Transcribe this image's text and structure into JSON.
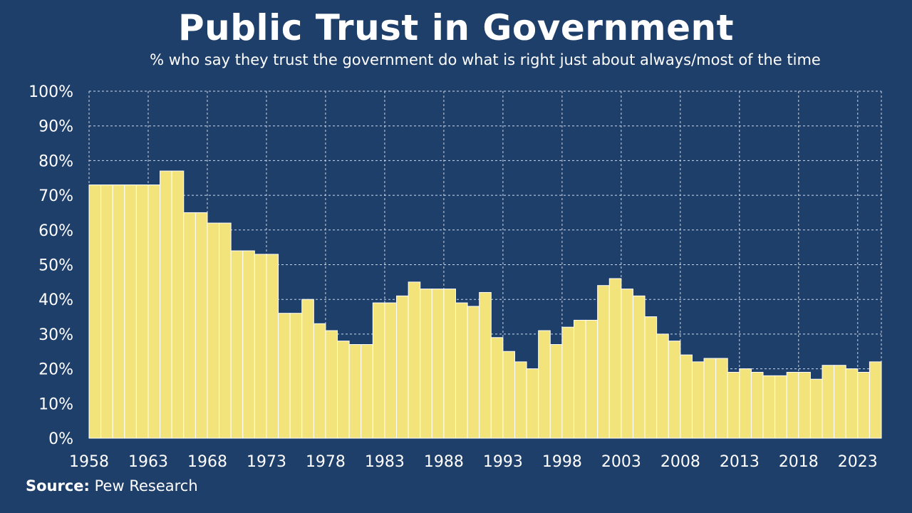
{
  "header": {
    "title": "Public Trust in Government",
    "subtitle": "% who say they trust the government do what is right just about always/most of the time"
  },
  "footer": {
    "source_label": "Source:",
    "source_value": "Pew Research"
  },
  "colors": {
    "background": "#1f3f6b",
    "bar": "#f2e37a",
    "bar_stroke": "#ffffff",
    "grid": "#d0d6e0"
  },
  "chart_data": {
    "type": "bar",
    "title": "Public Trust in Government",
    "subtitle": "% who say they trust the government do what is right just about always/most of the time",
    "xlabel": "",
    "ylabel": "",
    "ylim": [
      0,
      100
    ],
    "y_ticks": [
      0,
      10,
      20,
      30,
      40,
      50,
      60,
      70,
      80,
      90,
      100
    ],
    "y_tick_labels": [
      "0%",
      "10%",
      "20%",
      "30%",
      "40%",
      "50%",
      "60%",
      "70%",
      "80%",
      "90%",
      "100%"
    ],
    "x_ticks": [
      1958,
      1963,
      1968,
      1973,
      1978,
      1983,
      1988,
      1993,
      1998,
      2003,
      2008,
      2013,
      2018,
      2023
    ],
    "grid": true,
    "legend": "none",
    "x": [
      1958,
      1959,
      1960,
      1961,
      1962,
      1963,
      1964,
      1965,
      1966,
      1967,
      1968,
      1969,
      1970,
      1971,
      1972,
      1973,
      1974,
      1975,
      1976,
      1977,
      1978,
      1979,
      1980,
      1981,
      1982,
      1983,
      1984,
      1985,
      1986,
      1987,
      1988,
      1989,
      1990,
      1991,
      1992,
      1993,
      1994,
      1995,
      1996,
      1997,
      1998,
      1999,
      2000,
      2001,
      2002,
      2003,
      2004,
      2005,
      2006,
      2007,
      2008,
      2009,
      2010,
      2011,
      2012,
      2013,
      2014,
      2015,
      2016,
      2017,
      2018,
      2019,
      2020,
      2021,
      2022,
      2023,
      2024
    ],
    "values": [
      73,
      73,
      73,
      73,
      73,
      73,
      77,
      77,
      65,
      65,
      62,
      62,
      54,
      54,
      53,
      53,
      36,
      36,
      40,
      33,
      31,
      28,
      27,
      27,
      39,
      39,
      41,
      45,
      43,
      43,
      43,
      39,
      38,
      42,
      29,
      25,
      22,
      20,
      31,
      27,
      32,
      34,
      34,
      44,
      46,
      43,
      41,
      35,
      30,
      28,
      24,
      22,
      23,
      23,
      19,
      20,
      19,
      18,
      18,
      19,
      19,
      17,
      21,
      21,
      20,
      19,
      22
    ]
  }
}
